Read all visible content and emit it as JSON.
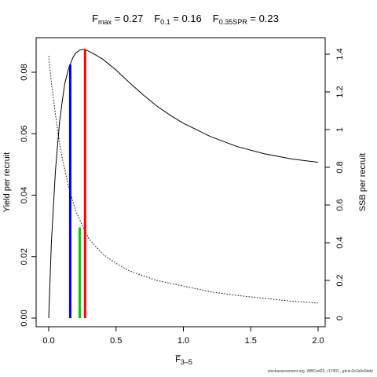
{
  "chart_data": {
    "type": "line",
    "title_parts": [
      {
        "main": "F",
        "sub": "max",
        "rest": " = 0.27"
      },
      {
        "main": "F",
        "sub": "0.1",
        "rest": " = 0.16"
      },
      {
        "main": "F",
        "sub": "0.35SPR",
        "rest": " = 0.23"
      }
    ],
    "xlabel": {
      "main": "F̅",
      "sub": "3–5"
    },
    "ylabel": "Yield per recruit",
    "y2label": "SSB per recruit",
    "xlim": [
      0,
      2.0
    ],
    "ylim": [
      0,
      0.088
    ],
    "y2lim": [
      0,
      1.41
    ],
    "xticks": [
      0.0,
      0.5,
      1.0,
      1.5,
      2.0
    ],
    "xtick_labels": [
      "0.0",
      "0.5",
      "1.0",
      "1.5",
      "2.0"
    ],
    "yticks": [
      0.0,
      0.02,
      0.04,
      0.06,
      0.08
    ],
    "ytick_labels": [
      "0.00",
      "0.02",
      "0.04",
      "0.06",
      "0.08"
    ],
    "y2ticks": [
      0,
      0.2,
      0.4,
      0.6,
      0.8,
      1.0,
      1.2,
      1.4
    ],
    "y2tick_labels": [
      "0",
      "0.2",
      "0.4",
      "0.6",
      "0.8",
      "1",
      "1.2",
      "1.4"
    ],
    "grid": false,
    "series": [
      {
        "style": "solid",
        "axis": "left",
        "color": "#000000",
        "x": [
          0,
          0.02,
          0.05,
          0.08,
          0.1,
          0.12,
          0.15,
          0.18,
          0.2,
          0.23,
          0.25,
          0.27,
          0.3,
          0.35,
          0.4,
          0.5,
          0.6,
          0.7,
          0.8,
          0.9,
          1.0,
          1.2,
          1.4,
          1.6,
          1.8,
          2.0
        ],
        "y": [
          0,
          0.0245,
          0.048,
          0.0635,
          0.0705,
          0.0765,
          0.0815,
          0.0848,
          0.0862,
          0.0872,
          0.0874,
          0.0875,
          0.0868,
          0.0856,
          0.0843,
          0.0807,
          0.0766,
          0.0727,
          0.0691,
          0.0661,
          0.0634,
          0.0591,
          0.0558,
          0.0535,
          0.0518,
          0.0507
        ]
      },
      {
        "style": "dotted",
        "axis": "right",
        "color": "#000000",
        "x": [
          0,
          0.02,
          0.05,
          0.08,
          0.1,
          0.15,
          0.2,
          0.25,
          0.3,
          0.4,
          0.5,
          0.6,
          0.8,
          1.0,
          1.2,
          1.4,
          1.6,
          1.8,
          2.0
        ],
        "y": [
          1.39,
          1.25,
          1.08,
          0.93,
          0.85,
          0.69,
          0.57,
          0.49,
          0.42,
          0.34,
          0.29,
          0.25,
          0.2,
          0.17,
          0.14,
          0.12,
          0.105,
          0.09,
          0.08
        ]
      }
    ],
    "reference_lines": [
      {
        "name": "F0.1",
        "x": 0.16,
        "y_top": 0.0825,
        "color": "#0000ff"
      },
      {
        "name": "F0.35SPR",
        "x": 0.23,
        "y_top": 0.0295,
        "color": "#00cc00"
      },
      {
        "name": "Fmax",
        "x": 0.27,
        "y_top": 0.0875,
        "color": "#ff0000"
      }
    ]
  },
  "footer": "stockassessment.org, WBCod23, r17401 , git:ec2c2a0c6dde"
}
